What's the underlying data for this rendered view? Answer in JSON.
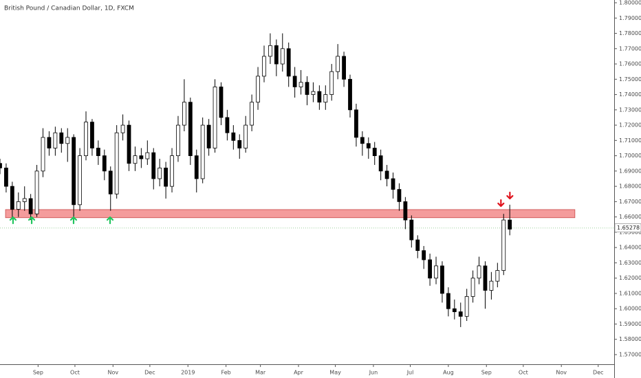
{
  "chart_data": {
    "type": "candlestick",
    "title": "British Pound / Canadian Dollar, 1D, FXCM",
    "x": [
      0,
      5,
      10,
      15,
      20,
      25,
      30,
      35,
      40,
      45,
      50,
      55,
      60,
      65,
      70,
      75,
      80,
      85,
      90,
      95,
      100,
      105,
      110,
      115,
      120,
      125,
      130,
      135,
      140,
      145,
      150,
      155,
      160,
      165,
      170,
      175,
      180,
      185,
      190,
      195,
      200,
      205,
      210,
      215,
      220,
      225,
      230,
      235,
      240,
      245,
      250,
      255,
      260,
      265,
      270,
      275,
      280,
      285,
      290,
      295,
      300,
      305,
      310,
      315,
      320,
      325,
      330,
      335,
      340,
      345,
      350,
      355,
      360,
      365,
      370,
      375,
      380,
      385,
      390,
      395,
      400,
      405,
      410,
      415
    ],
    "open": [
      1.695,
      1.692,
      1.68,
      1.665,
      1.67,
      1.672,
      1.662,
      1.69,
      1.712,
      1.705,
      1.715,
      1.708,
      1.712,
      1.668,
      1.7,
      1.722,
      1.705,
      1.7,
      1.69,
      1.675,
      1.715,
      1.72,
      1.695,
      1.7,
      1.698,
      1.702,
      1.685,
      1.692,
      1.68,
      1.7,
      1.72,
      1.735,
      1.7,
      1.685,
      1.72,
      1.705,
      1.745,
      1.725,
      1.715,
      1.71,
      1.705,
      1.72,
      1.735,
      1.752,
      1.765,
      1.772,
      1.76,
      1.77,
      1.752,
      1.745,
      1.748,
      1.74,
      1.742,
      1.735,
      1.74,
      1.755,
      1.765,
      1.75,
      1.73,
      1.712,
      1.708,
      1.705,
      1.7,
      1.69,
      1.685,
      1.678,
      1.67,
      1.658,
      1.645,
      1.638,
      1.632,
      1.62,
      1.628,
      1.61,
      1.6,
      1.598,
      1.595,
      1.608,
      1.62,
      1.628,
      1.612,
      1.618,
      1.625,
      1.658
    ],
    "high": [
      1.698,
      1.695,
      1.683,
      1.676,
      1.68,
      1.675,
      1.694,
      1.718,
      1.716,
      1.719,
      1.718,
      1.718,
      1.714,
      1.705,
      1.729,
      1.724,
      1.71,
      1.704,
      1.693,
      1.72,
      1.727,
      1.723,
      1.706,
      1.705,
      1.71,
      1.705,
      1.698,
      1.696,
      1.705,
      1.726,
      1.75,
      1.738,
      1.704,
      1.725,
      1.724,
      1.75,
      1.748,
      1.73,
      1.72,
      1.714,
      1.726,
      1.74,
      1.758,
      1.772,
      1.78,
      1.776,
      1.78,
      1.774,
      1.758,
      1.756,
      1.752,
      1.748,
      1.746,
      1.746,
      1.76,
      1.773,
      1.768,
      1.753,
      1.734,
      1.716,
      1.712,
      1.709,
      1.704,
      1.694,
      1.689,
      1.682,
      1.673,
      1.661,
      1.648,
      1.641,
      1.636,
      1.634,
      1.631,
      1.614,
      1.606,
      1.604,
      1.613,
      1.625,
      1.634,
      1.631,
      1.624,
      1.63,
      1.662,
      1.668
    ],
    "low": [
      1.688,
      1.676,
      1.659,
      1.66,
      1.664,
      1.658,
      1.66,
      1.686,
      1.7,
      1.7,
      1.702,
      1.696,
      1.66,
      1.664,
      1.697,
      1.7,
      1.694,
      1.684,
      1.664,
      1.672,
      1.71,
      1.69,
      1.69,
      1.692,
      1.694,
      1.678,
      1.68,
      1.672,
      1.676,
      1.696,
      1.716,
      1.694,
      1.676,
      1.682,
      1.7,
      1.702,
      1.72,
      1.71,
      1.704,
      1.698,
      1.702,
      1.716,
      1.73,
      1.748,
      1.76,
      1.752,
      1.755,
      1.745,
      1.738,
      1.74,
      1.733,
      1.735,
      1.73,
      1.73,
      1.736,
      1.75,
      1.745,
      1.725,
      1.706,
      1.7,
      1.698,
      1.694,
      1.684,
      1.68,
      1.672,
      1.664,
      1.652,
      1.64,
      1.633,
      1.626,
      1.615,
      1.616,
      1.604,
      1.595,
      1.593,
      1.588,
      1.592,
      1.604,
      1.616,
      1.6,
      1.606,
      1.614,
      1.622,
      1.648
    ],
    "close": [
      1.692,
      1.68,
      1.665,
      1.67,
      1.672,
      1.662,
      1.69,
      1.712,
      1.705,
      1.715,
      1.708,
      1.712,
      1.668,
      1.7,
      1.722,
      1.705,
      1.7,
      1.69,
      1.675,
      1.715,
      1.72,
      1.695,
      1.7,
      1.698,
      1.702,
      1.685,
      1.692,
      1.68,
      1.7,
      1.72,
      1.735,
      1.7,
      1.685,
      1.72,
      1.705,
      1.745,
      1.725,
      1.715,
      1.71,
      1.705,
      1.72,
      1.735,
      1.752,
      1.765,
      1.772,
      1.76,
      1.77,
      1.752,
      1.745,
      1.748,
      1.74,
      1.742,
      1.735,
      1.74,
      1.755,
      1.765,
      1.75,
      1.73,
      1.712,
      1.708,
      1.705,
      1.7,
      1.69,
      1.685,
      1.678,
      1.67,
      1.658,
      1.645,
      1.638,
      1.632,
      1.62,
      1.628,
      1.61,
      1.6,
      1.598,
      1.595,
      1.608,
      1.62,
      1.628,
      1.612,
      1.618,
      1.625,
      1.658,
      1.652
    ],
    "color": "#000000",
    "xlim": [
      0,
      500
    ],
    "xticks": [
      {
        "value": 31,
        "label": "Sep"
      },
      {
        "value": 61,
        "label": "Oct"
      },
      {
        "value": 92,
        "label": "Nov"
      },
      {
        "value": 122,
        "label": "Dec"
      },
      {
        "value": 153,
        "label": "2019"
      },
      {
        "value": 184,
        "label": "Feb"
      },
      {
        "value": 212,
        "label": "Mar"
      },
      {
        "value": 243,
        "label": "Apr"
      },
      {
        "value": 273,
        "label": "May"
      },
      {
        "value": 304,
        "label": "Jun"
      },
      {
        "value": 334,
        "label": "Jul"
      },
      {
        "value": 365,
        "label": "Aug"
      },
      {
        "value": 396,
        "label": "Sep"
      },
      {
        "value": 426,
        "label": "Oct"
      },
      {
        "value": 457,
        "label": "Nov"
      },
      {
        "value": 487,
        "label": "Dec"
      }
    ],
    "ylim": [
      1.5637,
      1.8018
    ],
    "yticks": [
      {
        "value": 1.57,
        "label": "1.57000"
      },
      {
        "value": 1.58,
        "label": "1.58000"
      },
      {
        "value": 1.59,
        "label": "1.59000"
      },
      {
        "value": 1.6,
        "label": "1.60000"
      },
      {
        "value": 1.61,
        "label": "1.61000"
      },
      {
        "value": 1.62,
        "label": "1.62000"
      },
      {
        "value": 1.63,
        "label": "1.63000"
      },
      {
        "value": 1.64,
        "label": "1.64000"
      },
      {
        "value": 1.65,
        "label": "1.65000"
      },
      {
        "value": 1.66,
        "label": "1.66000"
      },
      {
        "value": 1.67,
        "label": "1.67000"
      },
      {
        "value": 1.68,
        "label": "1.68000"
      },
      {
        "value": 1.69,
        "label": "1.69000"
      },
      {
        "value": 1.7,
        "label": "1.70000"
      },
      {
        "value": 1.71,
        "label": "1.71000"
      },
      {
        "value": 1.72,
        "label": "1.72000"
      },
      {
        "value": 1.73,
        "label": "1.73000"
      },
      {
        "value": 1.74,
        "label": "1.74000"
      },
      {
        "value": 1.75,
        "label": "1.75000"
      },
      {
        "value": 1.76,
        "label": "1.76000"
      },
      {
        "value": 1.77,
        "label": "1.77000"
      },
      {
        "value": 1.78,
        "label": "1.78000"
      },
      {
        "value": 1.79,
        "label": "1.79000"
      },
      {
        "value": 1.8,
        "label": "1.80000"
      }
    ],
    "last_price": {
      "value": 1.65278,
      "label": "1.65278"
    },
    "zone": {
      "low": 1.6595,
      "high": 1.6648,
      "x0": 4.5,
      "x1": 468,
      "color": "#f28b8b"
    },
    "support_arrows": {
      "color": "#22c55e",
      "x": [
        10.6,
        25.8,
        59.9,
        89.6
      ],
      "y": [
        1.6576,
        1.6576,
        1.6576,
        1.6576
      ]
    },
    "resistance_arrows": {
      "color": "#e0141e",
      "x": [
        407.8,
        415.1
      ],
      "y": [
        1.6693,
        1.6742
      ]
    }
  }
}
